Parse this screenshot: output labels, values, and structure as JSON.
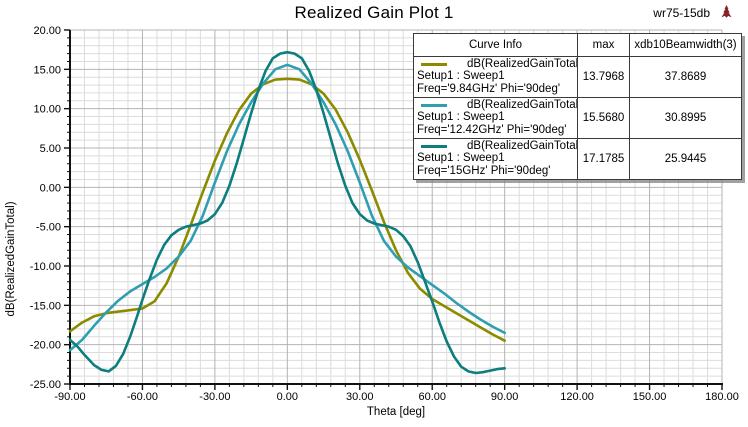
{
  "window": {
    "project_label": "wr75-15db",
    "logo_icon": "ansoft-logo-icon",
    "logo_color": "#8a1f24"
  },
  "chart_data": {
    "type": "line",
    "title": "Realized Gain Plot 1",
    "xlabel": "Theta [deg]",
    "ylabel": "dB(RealizedGainTotal)",
    "xlim": [
      -90,
      180
    ],
    "ylim": [
      -25,
      20
    ],
    "x_major_step": 30,
    "x_minor_step": 6,
    "y_major_step": 5,
    "y_minor_step": 1,
    "grid": true,
    "tick_decimals": 2,
    "colors": {
      "major_grid": "#b3b3b3",
      "minor_grid": "#dcdcdc",
      "axis": "#111111"
    },
    "legend": {
      "position": "top-right",
      "headers": [
        "Curve Info",
        "max",
        "xdb10Beamwidth(3)"
      ]
    },
    "series": [
      {
        "name": "dB(RealizedGainTotal)",
        "setup": "Setup1 : Sweep1",
        "variation": "Freq='9.84GHz' Phi='90deg'",
        "max": "13.7968",
        "beamwidth": "37.8689",
        "color": "#8B8B00",
        "points": [
          [
            -90,
            -18.3
          ],
          [
            -85,
            -17.2
          ],
          [
            -80,
            -16.4
          ],
          [
            -75,
            -16.0
          ],
          [
            -70,
            -15.8
          ],
          [
            -65,
            -15.6
          ],
          [
            -60,
            -15.4
          ],
          [
            -55,
            -14.5
          ],
          [
            -50,
            -12.2
          ],
          [
            -45,
            -8.8
          ],
          [
            -40,
            -4.8
          ],
          [
            -35,
            -0.6
          ],
          [
            -30,
            3.4
          ],
          [
            -25,
            6.9
          ],
          [
            -20,
            9.8
          ],
          [
            -15,
            11.9
          ],
          [
            -10,
            13.1
          ],
          [
            -5,
            13.7
          ],
          [
            0,
            13.8
          ],
          [
            5,
            13.7
          ],
          [
            10,
            13.1
          ],
          [
            15,
            11.9
          ],
          [
            20,
            9.9
          ],
          [
            25,
            7.0
          ],
          [
            30,
            3.5
          ],
          [
            35,
            -0.4
          ],
          [
            40,
            -4.4
          ],
          [
            45,
            -8.0
          ],
          [
            50,
            -10.9
          ],
          [
            55,
            -12.9
          ],
          [
            60,
            -14.2
          ],
          [
            65,
            -15.1
          ],
          [
            70,
            -16.0
          ],
          [
            75,
            -16.9
          ],
          [
            80,
            -17.8
          ],
          [
            85,
            -18.7
          ],
          [
            90,
            -19.5
          ]
        ]
      },
      {
        "name": "dB(RealizedGainTotal)",
        "setup": "Setup1 : Sweep1",
        "variation": "Freq='12.42GHz' Phi='90deg'",
        "max": "15.5680",
        "beamwidth": "30.8995",
        "color": "#2E9FB0",
        "points": [
          [
            -90,
            -20.7
          ],
          [
            -85,
            -19.4
          ],
          [
            -80,
            -17.6
          ],
          [
            -75,
            -15.9
          ],
          [
            -70,
            -14.4
          ],
          [
            -65,
            -13.2
          ],
          [
            -60,
            -12.3
          ],
          [
            -55,
            -11.4
          ],
          [
            -50,
            -10.3
          ],
          [
            -45,
            -8.8
          ],
          [
            -40,
            -6.8
          ],
          [
            -35,
            -3.6
          ],
          [
            -30,
            0.6
          ],
          [
            -25,
            4.6
          ],
          [
            -20,
            8.0
          ],
          [
            -15,
            10.8
          ],
          [
            -10,
            13.2
          ],
          [
            -5,
            15.0
          ],
          [
            0,
            15.57
          ],
          [
            5,
            15.0
          ],
          [
            10,
            13.2
          ],
          [
            15,
            10.8
          ],
          [
            20,
            8.0
          ],
          [
            25,
            4.6
          ],
          [
            30,
            0.6
          ],
          [
            35,
            -3.6
          ],
          [
            40,
            -6.8
          ],
          [
            45,
            -8.8
          ],
          [
            50,
            -10.2
          ],
          [
            55,
            -11.3
          ],
          [
            60,
            -12.4
          ],
          [
            65,
            -13.5
          ],
          [
            70,
            -14.7
          ],
          [
            75,
            -15.8
          ],
          [
            80,
            -16.8
          ],
          [
            85,
            -17.7
          ],
          [
            90,
            -18.5
          ]
        ]
      },
      {
        "name": "dB(RealizedGainTotal)",
        "setup": "Setup1 : Sweep1",
        "variation": "Freq='15GHz' Phi='90deg'",
        "max": "17.1785",
        "beamwidth": "25.9445",
        "color": "#0E7D7D",
        "points": [
          [
            -90,
            -19.4
          ],
          [
            -87,
            -20.2
          ],
          [
            -84,
            -21.3
          ],
          [
            -80,
            -22.6
          ],
          [
            -77,
            -23.2
          ],
          [
            -74,
            -23.4
          ],
          [
            -71,
            -22.7
          ],
          [
            -68,
            -21.2
          ],
          [
            -65,
            -18.9
          ],
          [
            -62,
            -16.2
          ],
          [
            -60,
            -14.3
          ],
          [
            -57,
            -11.6
          ],
          [
            -54,
            -9.2
          ],
          [
            -51,
            -7.3
          ],
          [
            -48,
            -6.1
          ],
          [
            -45,
            -5.4
          ],
          [
            -42,
            -5.0
          ],
          [
            -39,
            -4.8
          ],
          [
            -36,
            -4.6
          ],
          [
            -33,
            -4.2
          ],
          [
            -30,
            -3.4
          ],
          [
            -27,
            -2.0
          ],
          [
            -24,
            0.2
          ],
          [
            -21,
            3.0
          ],
          [
            -18,
            6.2
          ],
          [
            -15,
            9.4
          ],
          [
            -12,
            12.4
          ],
          [
            -9,
            14.8
          ],
          [
            -6,
            16.4
          ],
          [
            -3,
            17.0
          ],
          [
            0,
            17.1785
          ],
          [
            3,
            17.0
          ],
          [
            6,
            16.4
          ],
          [
            9,
            14.8
          ],
          [
            12,
            12.4
          ],
          [
            15,
            9.4
          ],
          [
            18,
            6.2
          ],
          [
            21,
            3.0
          ],
          [
            24,
            0.2
          ],
          [
            27,
            -2.0
          ],
          [
            30,
            -3.4
          ],
          [
            33,
            -4.2
          ],
          [
            36,
            -4.6
          ],
          [
            39,
            -4.8
          ],
          [
            42,
            -5.0
          ],
          [
            45,
            -5.4
          ],
          [
            48,
            -6.2
          ],
          [
            51,
            -7.5
          ],
          [
            54,
            -9.5
          ],
          [
            57,
            -12.0
          ],
          [
            60,
            -14.5
          ],
          [
            63,
            -17.2
          ],
          [
            66,
            -19.6
          ],
          [
            69,
            -21.5
          ],
          [
            72,
            -22.8
          ],
          [
            75,
            -23.4
          ],
          [
            78,
            -23.6
          ],
          [
            81,
            -23.5
          ],
          [
            84,
            -23.3
          ],
          [
            87,
            -23.1
          ],
          [
            90,
            -23.0
          ]
        ]
      }
    ]
  }
}
